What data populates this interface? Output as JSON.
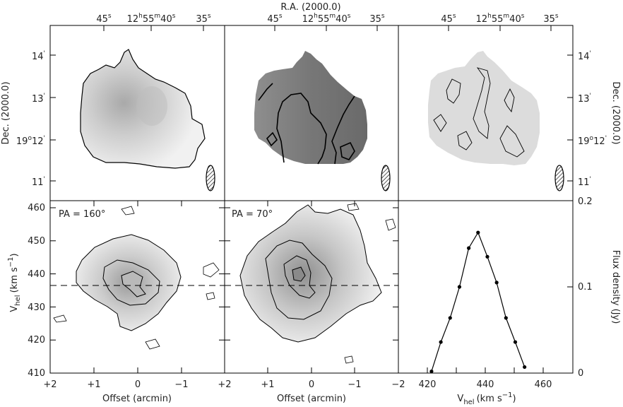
{
  "figure": {
    "top_axis_title": "R.A. (2000.0)",
    "ra_ticks": [
      {
        "main": "45",
        "sup": "s"
      },
      {
        "pre": "12",
        "h": "h",
        "m_pre": "55",
        "m": "m",
        "s_pre": "40",
        "s": "s"
      },
      {
        "main": "35",
        "sup": "s"
      }
    ],
    "dec_left_label": "Dec. (2000.0)",
    "dec_right_label": "Dec. (2000.0)",
    "dec_ticks": [
      {
        "main": "14",
        "prime": "'"
      },
      {
        "main": "13",
        "prime": "'"
      },
      {
        "pre": "19",
        "deg": "o",
        "post": "12",
        "prime": "'"
      },
      {
        "main": "11",
        "prime": "'"
      }
    ],
    "pv_left_annotation": "PA = 160°",
    "pv_right_annotation": "PA = 70°",
    "vhel_label_base": "V",
    "vhel_label_sub": "hel",
    "vhel_label_units": "(km s",
    "vhel_label_sup": "−1",
    "vhel_label_close": ")",
    "offset_label": "Offset (arcmin)",
    "offset_ticks": [
      "+2",
      "+1",
      "0",
      "−1",
      "−2"
    ],
    "velocity_ticks": [
      "410",
      "420",
      "430",
      "440",
      "450",
      "460"
    ],
    "flux_ticks": [
      "0",
      "0.1",
      "0.2"
    ],
    "flux_label": "Flux density (Jy)",
    "spectrum_x_ticks": [
      "420",
      "440",
      "460"
    ]
  },
  "chart_data": [
    {
      "type": "heatmap",
      "panel": "moment0",
      "axes": "sky",
      "ra_ticks": [
        "45s",
        "12h55m40s",
        "35s"
      ],
      "dec_ticks": [
        "14'",
        "13'",
        "19°12'",
        "11'"
      ],
      "beam": "hatched ellipse, lower-right"
    },
    {
      "type": "heatmap",
      "panel": "velocity-field",
      "axes": "sky",
      "ra_ticks": [
        "45s",
        "12h55m40s",
        "35s"
      ],
      "beam": "hatched ellipse, lower-right"
    },
    {
      "type": "heatmap",
      "panel": "dispersion",
      "axes": "sky",
      "ra_ticks": [
        "45s",
        "12h55m40s",
        "35s"
      ],
      "dec_ticks": [
        "14'",
        "13'",
        "19°12'",
        "11'"
      ],
      "beam": "hatched ellipse, lower-right"
    },
    {
      "type": "heatmap",
      "panel": "position-velocity",
      "annotation": "PA = 160°",
      "xlabel": "Offset (arcmin)",
      "ylabel": "Vhel (km s−1)",
      "xlim": [
        2,
        -2
      ],
      "ylim": [
        410,
        462
      ],
      "systemic_velocity": 437
    },
    {
      "type": "heatmap",
      "panel": "position-velocity",
      "annotation": "PA = 70°",
      "xlabel": "Offset (arcmin)",
      "xlim": [
        2,
        -2
      ],
      "ylim": [
        410,
        462
      ],
      "systemic_velocity": 437
    },
    {
      "type": "line",
      "panel": "global-profile",
      "xlabel": "Vhel (km s−1)",
      "ylabel": "Flux density (Jy)",
      "xlim": [
        410,
        470
      ],
      "ylim": [
        0,
        0.2
      ],
      "x": [
        421.4,
        424.6,
        427.8,
        431.0,
        434.2,
        437.4,
        440.6,
        443.8,
        447.0,
        450.2,
        453.4
      ],
      "y": [
        0.002,
        0.036,
        0.064,
        0.1,
        0.145,
        0.163,
        0.135,
        0.105,
        0.064,
        0.036,
        0.007
      ],
      "baseline": 0
    }
  ]
}
